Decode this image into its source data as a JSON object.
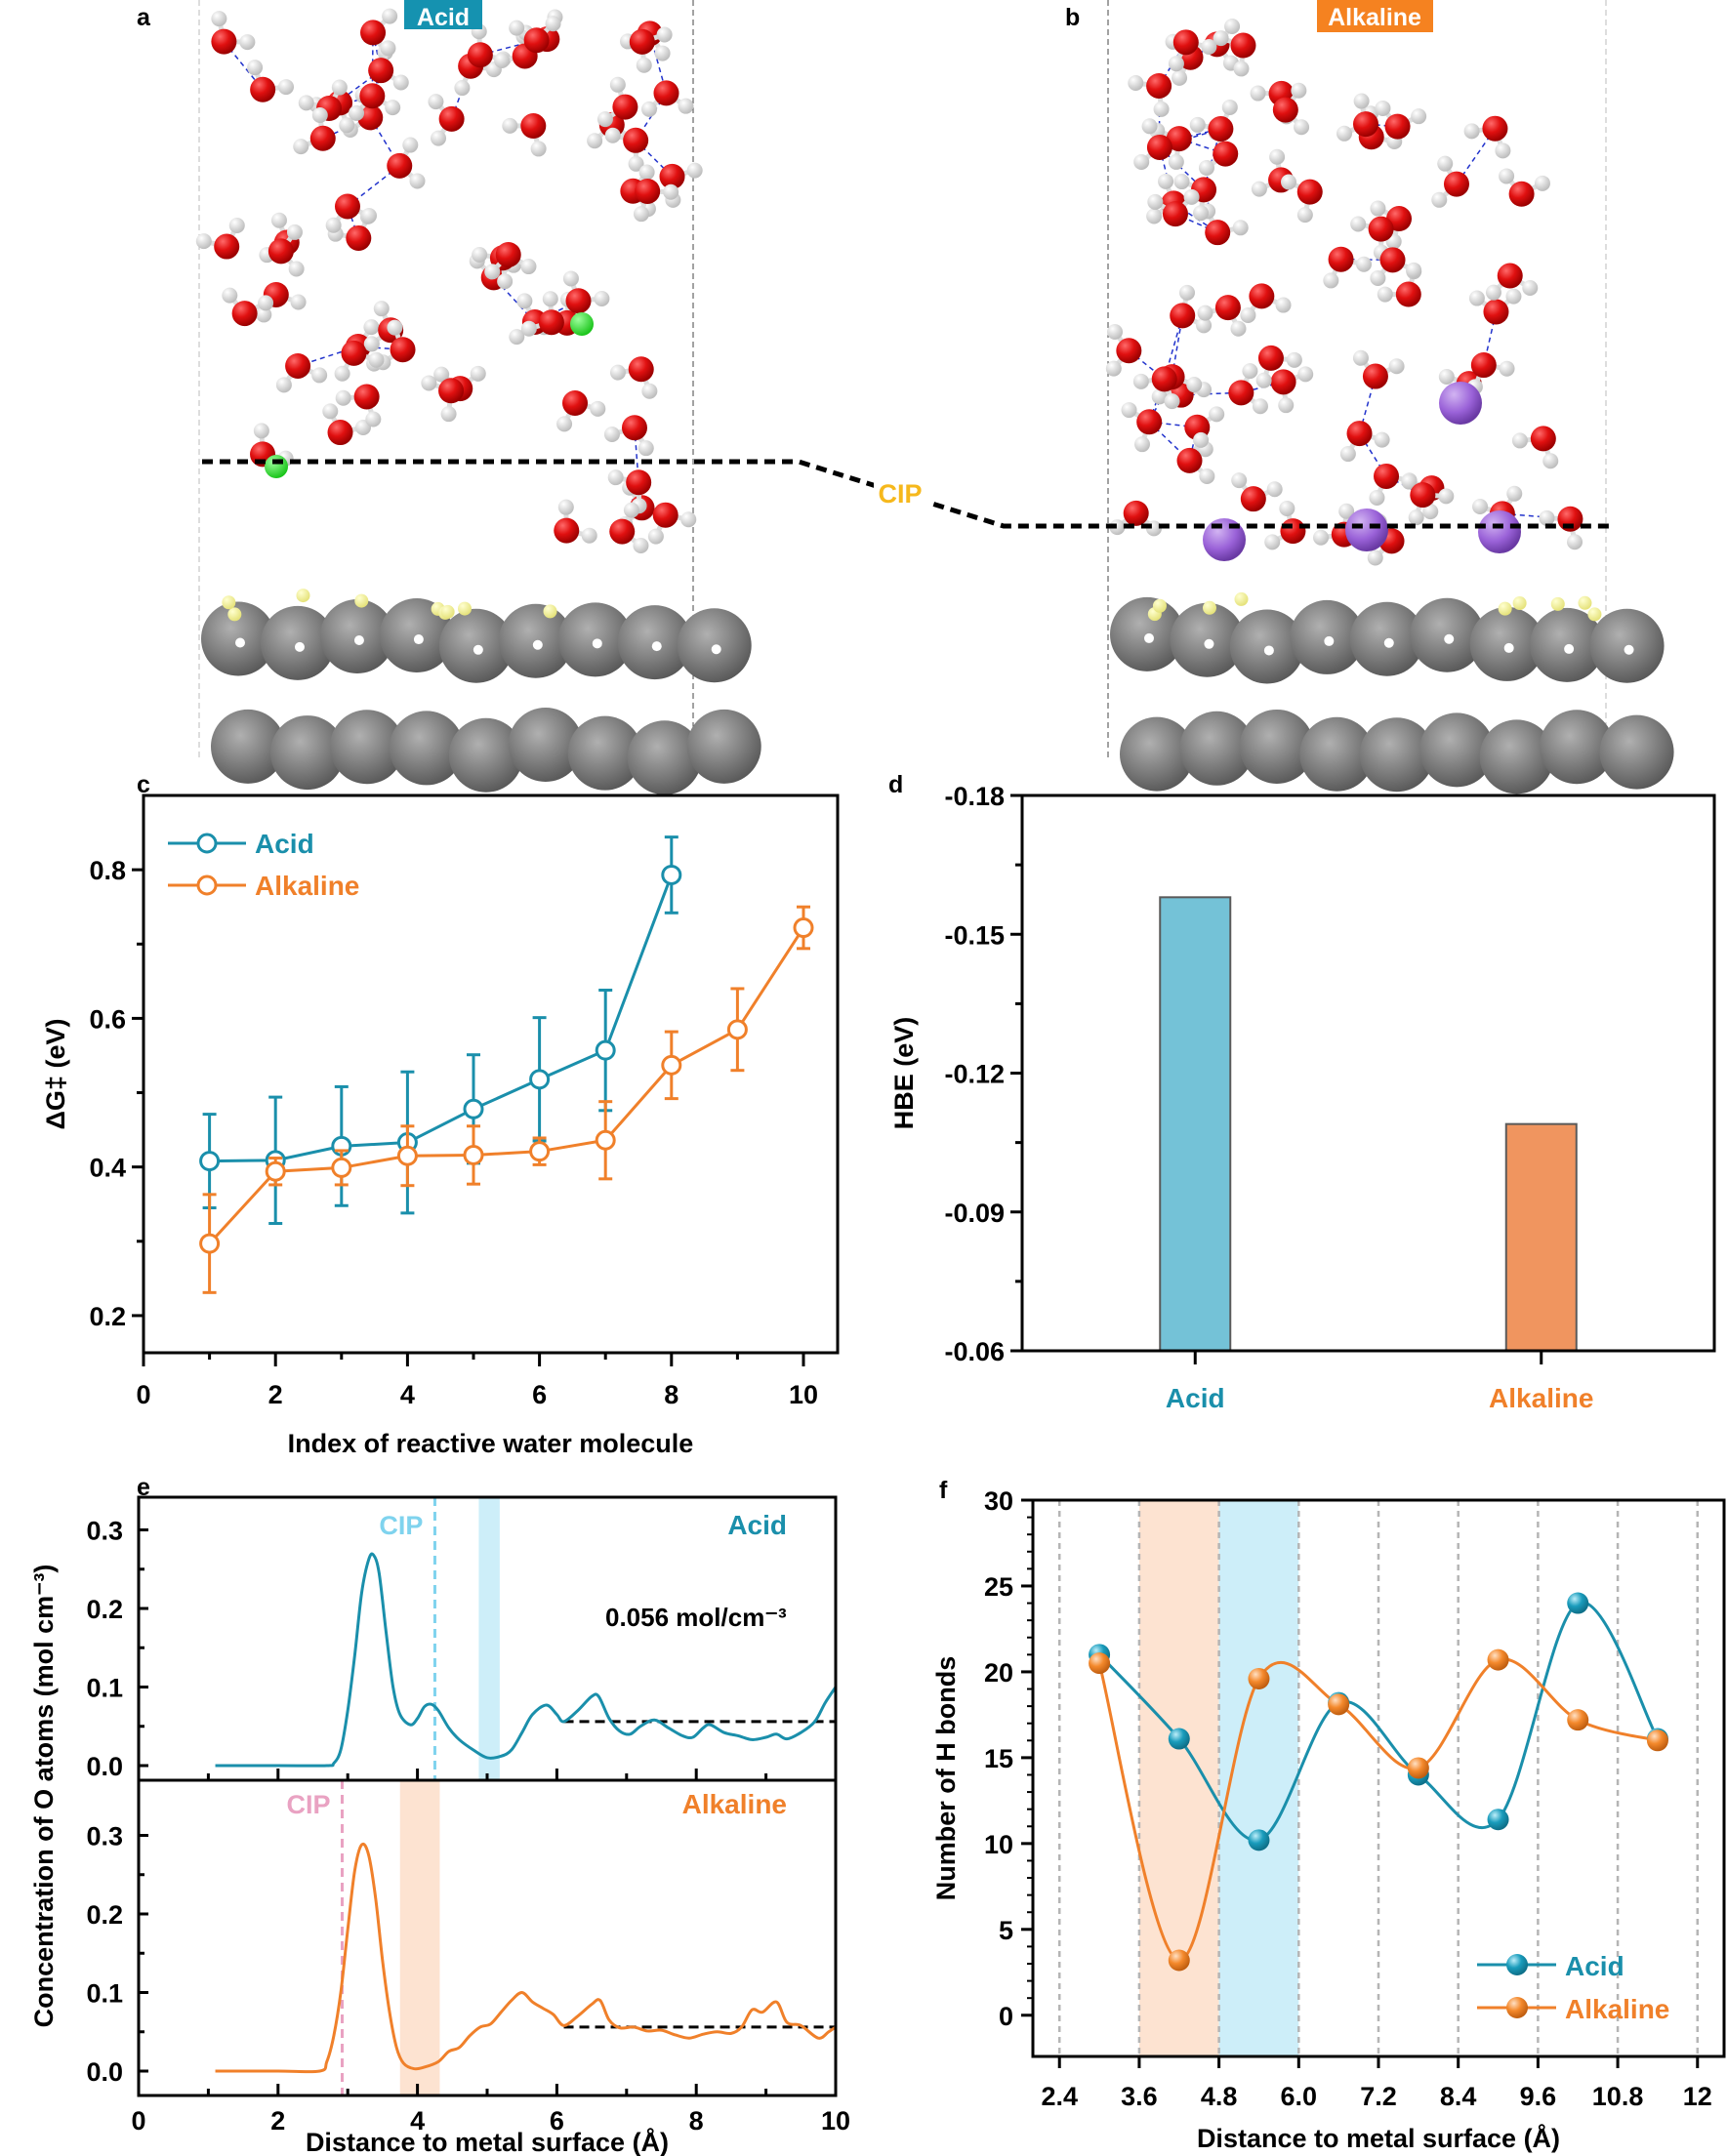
{
  "panels": {
    "a": {
      "letter": "a",
      "badge": "Acid",
      "badge_color": "#1592b0"
    },
    "b": {
      "letter": "b",
      "badge": "Alkaline",
      "badge_color": "#f58220"
    },
    "cip_label": "CIP",
    "cip_color": "#f6b81c"
  },
  "colors": {
    "acid": "#1a8fab",
    "alkaline": "#f0802a",
    "acid_bar": "#74c2d7",
    "alkaline_bar": "#f0955f",
    "acid_band": "#cdeef9",
    "alkaline_band": "#fde3d1",
    "acid_cip": "#7fd3ee",
    "alkaline_cip": "#e9a2c2"
  },
  "chart_data": [
    {
      "id": "c",
      "letter": "c",
      "type": "line",
      "xlabel": "Index of reactive water molecule",
      "ylabel": "ΔG‡ (eV)",
      "xlim": [
        0,
        10.5
      ],
      "ylim": [
        0.15,
        0.9
      ],
      "xticks": [
        0,
        2,
        4,
        6,
        8,
        10
      ],
      "yticks": [
        0.2,
        0.4,
        0.6,
        0.8
      ],
      "ytick_labels": [
        "0.2",
        "0.4",
        "0.6",
        "0.8"
      ],
      "legend": "top-left",
      "series": [
        {
          "name": "Acid",
          "color_key": "acid",
          "x": [
            1,
            2,
            3,
            4,
            5,
            6,
            7,
            8
          ],
          "y": [
            0.408,
            0.409,
            0.428,
            0.433,
            0.478,
            0.518,
            0.557,
            0.793
          ],
          "err_low": [
            0.063,
            0.085,
            0.08,
            0.095,
            0.073,
            0.083,
            0.081,
            0.051
          ],
          "err_high": [
            0.063,
            0.085,
            0.08,
            0.095,
            0.073,
            0.083,
            0.081,
            0.051
          ]
        },
        {
          "name": "Alkaline",
          "color_key": "alkaline",
          "x": [
            1,
            2,
            3,
            4,
            5,
            6,
            7,
            8,
            9,
            10
          ],
          "y": [
            0.297,
            0.394,
            0.399,
            0.415,
            0.416,
            0.421,
            0.436,
            0.537,
            0.585,
            0.722
          ],
          "err_low": [
            0.066,
            0.018,
            0.023,
            0.04,
            0.039,
            0.018,
            0.052,
            0.045,
            0.055,
            0.028
          ],
          "err_high": [
            0.066,
            0.018,
            0.023,
            0.04,
            0.039,
            0.018,
            0.052,
            0.045,
            0.055,
            0.028
          ]
        }
      ]
    },
    {
      "id": "d",
      "letter": "d",
      "type": "bar",
      "ylabel": "HBE (eV)",
      "categories": [
        "Acid",
        "Alkaline"
      ],
      "values": [
        -0.158,
        -0.109
      ],
      "bar_color_keys": [
        "acid_bar",
        "alkaline_bar"
      ],
      "label_color_keys": [
        "acid",
        "alkaline"
      ],
      "ylim": [
        -0.06,
        -0.18
      ],
      "yticks": [
        -0.18,
        -0.15,
        -0.12,
        -0.09,
        -0.06
      ],
      "ytick_labels": [
        "-0.18",
        "-0.15",
        "-0.12",
        "-0.09",
        "-0.06"
      ],
      "baseline": -0.06
    },
    {
      "id": "e",
      "letter": "e",
      "type": "line",
      "xlabel": "Distance to metal surface (Å)",
      "ylabel": "Concentration of  O atoms (mol cm⁻³)",
      "xlim": [
        0,
        10
      ],
      "xticks": [
        0,
        2,
        4,
        6,
        8,
        10
      ],
      "subplots": [
        {
          "name": "Acid",
          "color_key": "acid",
          "ylim": [
            -0.02,
            0.335
          ],
          "yticks": [
            0.0,
            0.1,
            0.2,
            0.3
          ],
          "ytick_labels": [
            "0.0",
            "0.1",
            "0.2",
            "0.3"
          ],
          "cip_x": 4.25,
          "cip_color_key": "acid_cip",
          "band": [
            4.88,
            5.18
          ],
          "band_color_key": "acid_band",
          "bulk_value": 0.056,
          "bulk_range": [
            6.1,
            10
          ],
          "annotation": "0.056 mol/cm⁻³",
          "x": [
            1.1,
            2.0,
            2.7,
            2.8,
            2.9,
            3.0,
            3.1,
            3.2,
            3.3,
            3.37,
            3.45,
            3.55,
            3.65,
            3.75,
            3.9,
            4.0,
            4.1,
            4.2,
            4.3,
            4.45,
            4.6,
            4.8,
            5.0,
            5.2,
            5.35,
            5.5,
            5.65,
            5.85,
            6.0,
            6.1,
            6.3,
            6.5,
            6.6,
            6.75,
            6.9,
            7.05,
            7.2,
            7.4,
            7.6,
            7.8,
            7.95,
            8.1,
            8.2,
            8.4,
            8.6,
            8.8,
            9.0,
            9.15,
            9.3,
            9.5,
            9.7,
            9.85,
            10.0
          ],
          "y": [
            0.0,
            0.0,
            0.0,
            0.003,
            0.02,
            0.07,
            0.14,
            0.22,
            0.262,
            0.268,
            0.245,
            0.17,
            0.1,
            0.065,
            0.052,
            0.06,
            0.075,
            0.078,
            0.07,
            0.048,
            0.033,
            0.02,
            0.01,
            0.012,
            0.02,
            0.042,
            0.065,
            0.077,
            0.065,
            0.056,
            0.07,
            0.088,
            0.088,
            0.06,
            0.044,
            0.04,
            0.05,
            0.058,
            0.048,
            0.038,
            0.036,
            0.048,
            0.052,
            0.042,
            0.038,
            0.033,
            0.036,
            0.04,
            0.034,
            0.042,
            0.056,
            0.08,
            0.1
          ]
        },
        {
          "name": "Alkaline",
          "color_key": "alkaline",
          "ylim": [
            -0.02,
            0.335
          ],
          "yticks": [
            0.0,
            0.1,
            0.2,
            0.3
          ],
          "ytick_labels": [
            "0.0",
            "0.1",
            "0.2",
            "0.3"
          ],
          "cip_x": 2.92,
          "cip_color_key": "alkaline_cip",
          "band": [
            3.75,
            4.32
          ],
          "band_color_key": "alkaline_band",
          "bulk_value": 0.056,
          "bulk_range": [
            6.1,
            10
          ],
          "x": [
            1.1,
            2.0,
            2.6,
            2.7,
            2.8,
            2.9,
            3.0,
            3.1,
            3.2,
            3.3,
            3.4,
            3.5,
            3.6,
            3.7,
            3.8,
            3.95,
            4.1,
            4.3,
            4.45,
            4.6,
            4.75,
            4.9,
            5.05,
            5.2,
            5.35,
            5.5,
            5.65,
            5.8,
            5.95,
            6.1,
            6.3,
            6.5,
            6.62,
            6.75,
            6.9,
            7.1,
            7.3,
            7.5,
            7.7,
            7.9,
            8.1,
            8.3,
            8.5,
            8.65,
            8.8,
            8.95,
            9.15,
            9.3,
            9.5,
            9.75,
            9.9,
            10.0
          ],
          "y": [
            0.0,
            0.0,
            0.0,
            0.012,
            0.045,
            0.1,
            0.18,
            0.255,
            0.288,
            0.275,
            0.22,
            0.14,
            0.075,
            0.03,
            0.01,
            0.003,
            0.005,
            0.012,
            0.025,
            0.03,
            0.045,
            0.056,
            0.06,
            0.075,
            0.09,
            0.1,
            0.088,
            0.08,
            0.072,
            0.058,
            0.07,
            0.085,
            0.09,
            0.065,
            0.055,
            0.056,
            0.051,
            0.052,
            0.046,
            0.042,
            0.047,
            0.05,
            0.048,
            0.056,
            0.078,
            0.075,
            0.088,
            0.062,
            0.058,
            0.042,
            0.05,
            0.056
          ]
        }
      ]
    },
    {
      "id": "f",
      "letter": "f",
      "type": "line",
      "xlabel": "Distance to metal surface (Å)",
      "ylabel": "Number of H bonds",
      "xlim": [
        2.0,
        12.4
      ],
      "ylim": [
        -2.4,
        30
      ],
      "xticks": [
        2.4,
        3.6,
        4.8,
        6.0,
        7.2,
        8.4,
        9.6,
        10.8,
        12
      ],
      "xtick_labels": [
        "2.4",
        "3.6",
        "4.8",
        "6.0",
        "7.2",
        "8.4",
        "9.6",
        "10.8",
        "12"
      ],
      "yticks": [
        0,
        5,
        10,
        15,
        20,
        25,
        30
      ],
      "ytick_labels": [
        "0",
        "5",
        "10",
        "15",
        "20",
        "25",
        "30"
      ],
      "grid": "vertical-dashed",
      "bands": [
        {
          "range": [
            3.6,
            4.8
          ],
          "color_key": "alkaline_band"
        },
        {
          "range": [
            4.8,
            6.0
          ],
          "color_key": "acid_band"
        }
      ],
      "legend": "bottom-right",
      "series": [
        {
          "name": "Acid",
          "color_key": "acid",
          "x": [
            3.0,
            4.2,
            5.4,
            6.6,
            7.8,
            9.0,
            10.2,
            11.4
          ],
          "y": [
            21.0,
            16.1,
            10.2,
            18.2,
            14.0,
            11.4,
            24.0,
            16.1
          ]
        },
        {
          "name": "Alkaline",
          "color_key": "alkaline",
          "x": [
            3.0,
            4.2,
            5.4,
            6.6,
            7.8,
            9.0,
            10.2,
            11.4
          ],
          "y": [
            20.5,
            3.2,
            19.6,
            18.1,
            14.4,
            20.7,
            17.2,
            16.0
          ]
        }
      ]
    }
  ]
}
